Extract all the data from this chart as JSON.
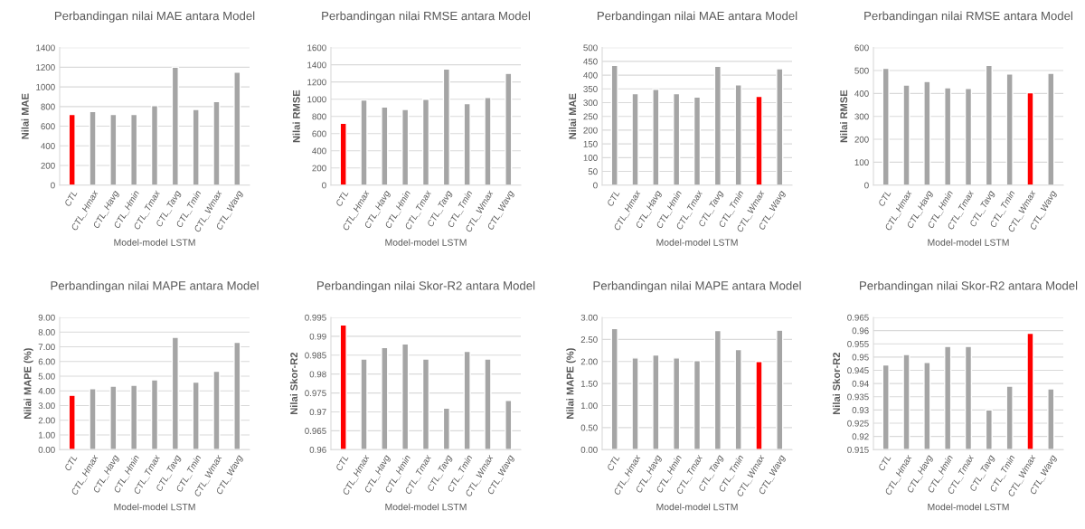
{
  "chart_data": [
    {
      "type": "bar",
      "title": "Perbandingan nilai MAE antara Model",
      "xlabel": "Model-model LSTM",
      "ylabel": "Nilai MAE",
      "categories": [
        "CTL",
        "CTL_Hmax",
        "CTL_Havg",
        "CTL_Hmin",
        "CTL_Tmax",
        "CTL_Tavg",
        "CTL_Tmin",
        "CTL_Wmax",
        "CTL_Wavg"
      ],
      "values": [
        720,
        750,
        720,
        720,
        810,
        1200,
        770,
        850,
        1150
      ],
      "colors": [
        "#ff0000",
        "#a5a5a5",
        "#a5a5a5",
        "#a5a5a5",
        "#a5a5a5",
        "#a5a5a5",
        "#a5a5a5",
        "#a5a5a5",
        "#a5a5a5"
      ],
      "ylim": [
        0,
        1400
      ],
      "yticks": [
        0,
        200,
        400,
        600,
        800,
        1000,
        1200,
        1400
      ],
      "grid": "y"
    },
    {
      "type": "bar",
      "title": "Perbandingan nilai RMSE antara Model",
      "xlabel": "Model-model LSTM",
      "ylabel": "Nilai RMSE",
      "categories": [
        "CTL",
        "CTL_Hmax",
        "CTL_Havg",
        "CTL_Hmin",
        "CTL_Tmax",
        "CTL_Tavg",
        "CTL_Tmin",
        "CTL_Wmax",
        "CTL_Wavg"
      ],
      "values": [
        720,
        990,
        910,
        880,
        1000,
        1350,
        950,
        1020,
        1300
      ],
      "colors": [
        "#ff0000",
        "#a5a5a5",
        "#a5a5a5",
        "#a5a5a5",
        "#a5a5a5",
        "#a5a5a5",
        "#a5a5a5",
        "#a5a5a5",
        "#a5a5a5"
      ],
      "ylim": [
        0,
        1600
      ],
      "yticks": [
        0,
        200,
        400,
        600,
        800,
        1000,
        1200,
        1400,
        1600
      ],
      "grid": "y"
    },
    {
      "type": "bar",
      "title": "Perbandingan nilai MAE antara Model",
      "xlabel": "Model-model LSTM",
      "ylabel": "Nilai MAE",
      "categories": [
        "CTL",
        "CTL_Hmax",
        "CTL_Havg",
        "CTL_Hmin",
        "CTL_Tmax",
        "CTL_Tavg",
        "CTL_Tmin",
        "CTL_Wmax",
        "CTL_Wavg"
      ],
      "values": [
        435,
        333,
        348,
        333,
        320,
        432,
        365,
        323,
        423
      ],
      "colors": [
        "#a5a5a5",
        "#a5a5a5",
        "#a5a5a5",
        "#a5a5a5",
        "#a5a5a5",
        "#a5a5a5",
        "#a5a5a5",
        "#ff0000",
        "#a5a5a5"
      ],
      "ylim": [
        0,
        500
      ],
      "yticks": [
        0,
        50,
        100,
        150,
        200,
        250,
        300,
        350,
        400,
        450,
        500
      ],
      "grid": "y"
    },
    {
      "type": "bar",
      "title": "Perbandingan nilai RMSE antara Model",
      "xlabel": "Model-model LSTM",
      "ylabel": "Nilai RMSE",
      "categories": [
        "CTL",
        "CTL_Hmax",
        "CTL_Havg",
        "CTL_Hmin",
        "CTL_Tmax",
        "CTL_Tavg",
        "CTL_Tmin",
        "CTL_Wmax",
        "CTL_Wavg"
      ],
      "values": [
        510,
        437,
        452,
        425,
        422,
        522,
        485,
        403,
        488
      ],
      "colors": [
        "#a5a5a5",
        "#a5a5a5",
        "#a5a5a5",
        "#a5a5a5",
        "#a5a5a5",
        "#a5a5a5",
        "#a5a5a5",
        "#ff0000",
        "#a5a5a5"
      ],
      "ylim": [
        0,
        600
      ],
      "yticks": [
        0,
        100,
        200,
        300,
        400,
        500,
        600
      ],
      "grid": "y"
    },
    {
      "type": "bar",
      "title": "Perbandingan nilai MAPE antara Model",
      "xlabel": "Model-model LSTM",
      "ylabel": "Nilai MAPE (%)",
      "categories": [
        "CTL",
        "CTL_Hmax",
        "CTL_Havg",
        "CTL_Hmin",
        "CTL_Tmax",
        "CTL_Tavg",
        "CTL_Tmin",
        "CTL_Wmax",
        "CTL_Wavg"
      ],
      "values": [
        3.7,
        4.15,
        4.32,
        4.38,
        4.75,
        7.65,
        4.6,
        5.33,
        7.3
      ],
      "colors": [
        "#ff0000",
        "#a5a5a5",
        "#a5a5a5",
        "#a5a5a5",
        "#a5a5a5",
        "#a5a5a5",
        "#a5a5a5",
        "#a5a5a5",
        "#a5a5a5"
      ],
      "ylim": [
        0,
        9
      ],
      "yticks": [
        {
          "value": 0,
          "label": "0.00"
        },
        {
          "value": 1,
          "label": "1.00"
        },
        {
          "value": 2,
          "label": "2.00"
        },
        {
          "value": 3,
          "label": "3.00"
        },
        {
          "value": 4,
          "label": "4.00"
        },
        {
          "value": 5,
          "label": "5.00"
        },
        {
          "value": 6,
          "label": "6.00"
        },
        {
          "value": 7,
          "label": "7.00"
        },
        {
          "value": 8,
          "label": "8.00"
        },
        {
          "value": 9,
          "label": "9.00"
        }
      ],
      "grid": "y"
    },
    {
      "type": "bar",
      "title": "Perbandingan nilai Skor-R2 antara Model",
      "xlabel": "Model-model LSTM",
      "ylabel": "Nilai Skor-R2",
      "categories": [
        "CTL",
        "CTL_Hmax",
        "CTL_Havg",
        "CTL_Hmin",
        "CTL_Tmax",
        "CTL_Tavg",
        "CTL_Tmin",
        "CTL_Wmax",
        "CTL_Wavg"
      ],
      "values": [
        0.993,
        0.984,
        0.987,
        0.988,
        0.984,
        0.971,
        0.986,
        0.984,
        0.973
      ],
      "colors": [
        "#ff0000",
        "#a5a5a5",
        "#a5a5a5",
        "#a5a5a5",
        "#a5a5a5",
        "#a5a5a5",
        "#a5a5a5",
        "#a5a5a5",
        "#a5a5a5"
      ],
      "ylim": [
        0.96,
        0.995
      ],
      "yticks": [
        0.96,
        0.965,
        0.97,
        0.975,
        0.98,
        0.985,
        0.99,
        0.995
      ],
      "grid": "y"
    },
    {
      "type": "bar",
      "title": "Perbandingan nilai MAPE antara Model",
      "xlabel": "Model-model LSTM",
      "ylabel": "Nilai MAPE (%)",
      "categories": [
        "CTL",
        "CTL_Hmax",
        "CTL_Havg",
        "CTL_Hmin",
        "CTL_Tmax",
        "CTL_Tavg",
        "CTL_Tmin",
        "CTL_Wmax",
        "CTL_Wavg"
      ],
      "values": [
        2.75,
        2.08,
        2.15,
        2.08,
        2.02,
        2.7,
        2.27,
        2.0,
        2.71
      ],
      "colors": [
        "#a5a5a5",
        "#a5a5a5",
        "#a5a5a5",
        "#a5a5a5",
        "#a5a5a5",
        "#a5a5a5",
        "#a5a5a5",
        "#ff0000",
        "#a5a5a5"
      ],
      "ylim": [
        0,
        3
      ],
      "yticks": [
        {
          "value": 0,
          "label": "0.00"
        },
        {
          "value": 0.5,
          "label": "0.50"
        },
        {
          "value": 1,
          "label": "1.00"
        },
        {
          "value": 1.5,
          "label": "1.50"
        },
        {
          "value": 2,
          "label": "2.00"
        },
        {
          "value": 2.5,
          "label": "2.50"
        },
        {
          "value": 3,
          "label": "3.00"
        }
      ],
      "grid": "y"
    },
    {
      "type": "bar",
      "title": "Perbandingan nilai Skor-R2 antara Model",
      "xlabel": "Model-model LSTM",
      "ylabel": "Nilai Skor-R2",
      "categories": [
        "CTL",
        "CTL_Hmax",
        "CTL_Havg",
        "CTL_Hmin",
        "CTL_Tmax",
        "CTL_Tavg",
        "CTL_Tmin",
        "CTL_Wmax",
        "CTL_Wavg"
      ],
      "values": [
        0.947,
        0.951,
        0.948,
        0.954,
        0.954,
        0.93,
        0.939,
        0.959,
        0.938
      ],
      "colors": [
        "#a5a5a5",
        "#a5a5a5",
        "#a5a5a5",
        "#a5a5a5",
        "#a5a5a5",
        "#a5a5a5",
        "#a5a5a5",
        "#ff0000",
        "#a5a5a5"
      ],
      "ylim": [
        0.915,
        0.965
      ],
      "yticks": [
        0.915,
        0.92,
        0.925,
        0.93,
        0.935,
        0.94,
        0.945,
        0.95,
        0.955,
        0.96,
        0.965
      ],
      "grid": "y"
    }
  ]
}
